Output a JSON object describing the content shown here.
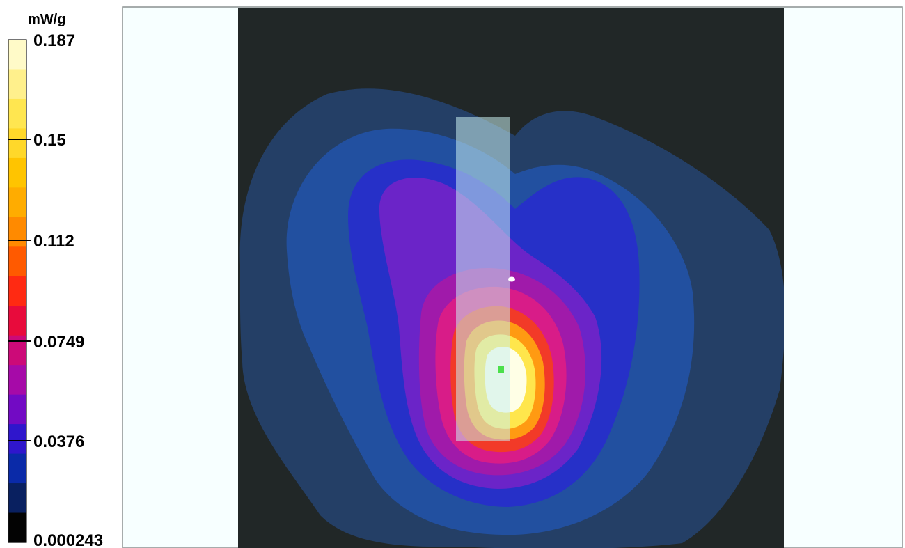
{
  "chart_data": {
    "type": "heatmap",
    "unit": "mW/g",
    "color_scale": {
      "min": 0.000243,
      "max": 0.187,
      "tick_labels": [
        "0.187",
        "0.15",
        "0.112",
        "0.0749",
        "0.0376",
        "0.000243"
      ],
      "bands": [
        "#fffac8",
        "#fff08c",
        "#ffe650",
        "#ffd82a",
        "#ffc400",
        "#ffac00",
        "#ff8a00",
        "#ff5a00",
        "#ff2a12",
        "#e80b3c",
        "#cc0a78",
        "#a60aa8",
        "#720ac4",
        "#2f16cc",
        "#0a2aa8",
        "#092060",
        "#030303"
      ]
    },
    "peak": {
      "value": 0.187,
      "location": "lower-center, right of the probe marker"
    },
    "background_colors": {
      "frame": "#f7ffff",
      "plot": "#212727"
    },
    "contour_colors": [
      "#243f66",
      "#2250a0",
      "#2630c8",
      "#6b24c8",
      "#a01aaa",
      "#d81c88",
      "#f23a28",
      "#ff9a12",
      "#ffe64c",
      "#ffffe6"
    ]
  }
}
